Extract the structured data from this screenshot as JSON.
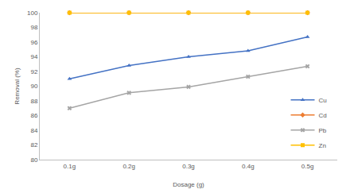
{
  "chart_data": {
    "type": "line",
    "x_label": "Dosage (g)",
    "y_label": "Removal (%)",
    "categories": [
      "0.1g",
      "0.2g",
      "0.3g",
      "0.4g",
      "0.5g"
    ],
    "series": [
      {
        "name": "Cu",
        "color": "#4472c4",
        "marker": "triangle-up",
        "values": [
          91,
          92.8,
          94,
          94.8,
          96.7
        ]
      },
      {
        "name": "Cd",
        "color": "#ed7d31",
        "marker": "diamond",
        "values": [
          100,
          100,
          100,
          100,
          100
        ]
      },
      {
        "name": "Pb",
        "color": "#a5a5a5",
        "marker": "x",
        "values": [
          87,
          89.1,
          89.9,
          91.3,
          92.7
        ]
      },
      {
        "name": "Zn",
        "color": "#ffc000",
        "marker": "square",
        "values": [
          100,
          100,
          100,
          100,
          100
        ]
      }
    ],
    "ylim": [
      80,
      100
    ],
    "yticks": [
      80,
      82,
      84,
      86,
      88,
      90,
      92,
      94,
      96,
      98,
      100
    ],
    "grid": false,
    "legend": "lower right"
  }
}
